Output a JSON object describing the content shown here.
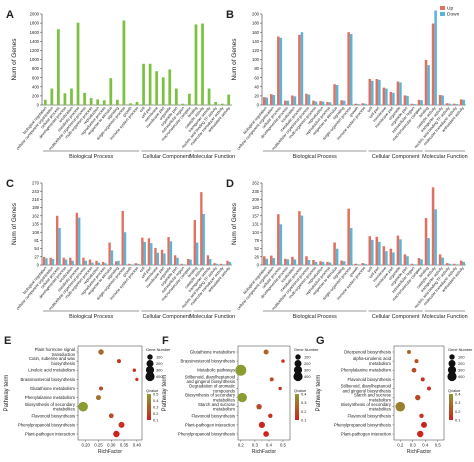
{
  "go_axis": {
    "ylabel": "Num of Genes",
    "terms": [
      "biological regulation",
      "cellular component organization",
      "cellular process",
      "developmental process",
      "localization",
      "metabolic process",
      "multicellular organismal process",
      "multi-organism process",
      "reproduction",
      "reproductive process",
      "response to stimulus",
      "signaling",
      "single-organism process",
      "growth",
      "immune system process",
      "cell",
      "cell part",
      "membrane",
      "membrane part",
      "organelle",
      "organelle part",
      "extracellular region",
      "macromolecular complex",
      "binding",
      "catalytic activity",
      "transporter activity",
      "nucleic acid binding TF activity",
      "molecular transducer activity",
      "antioxidant activity"
    ],
    "groups": [
      "Biological Process",
      "Cellular Component",
      "Molecular Function"
    ]
  },
  "legend_updown": {
    "up": "Up",
    "down": "Down"
  },
  "kegg_common": {
    "ylabel": "Pathway term",
    "xlabel": "RichFactor",
    "size_title": "Gene Number",
    "color_title": "Qvalue"
  },
  "chart_data": [
    {
      "panel": "A",
      "type": "bar",
      "ylim": [
        0,
        2100
      ],
      "yticks": [
        "0",
        "200",
        "400",
        "600",
        "800",
        "1000",
        "1200",
        "1400",
        "1600",
        "1800",
        "2000"
      ],
      "series": [
        {
          "values": [
            120,
            380,
            1750,
            270,
            380,
            1900,
            280,
            160,
            130,
            110,
            620,
            120,
            1950,
            40,
            70,
            950,
            950,
            780,
            640,
            820,
            380,
            30,
            260,
            1860,
            1880,
            380,
            70,
            30,
            240
          ]
        }
      ],
      "colors": {
        "bar": "#7dc142"
      }
    },
    {
      "panel": "B",
      "type": "bar",
      "ylim": [
        0,
        210
      ],
      "yticks": [
        "0",
        "20",
        "40",
        "60",
        "80",
        "100",
        "120",
        "140",
        "160",
        "180",
        "200"
      ],
      "series": [
        {
          "values": [
            18,
            25,
            158,
            10,
            22,
            162,
            26,
            10,
            9,
            7,
            48,
            11,
            168,
            3,
            4,
            60,
            60,
            40,
            30,
            54,
            22,
            3,
            12,
            104,
            188,
            23,
            4,
            3,
            13
          ]
        },
        {
          "values": [
            17,
            23,
            155,
            10,
            20,
            168,
            24,
            8,
            8,
            6,
            46,
            10,
            164,
            2,
            3,
            56,
            58,
            38,
            28,
            52,
            21,
            2,
            11,
            92,
            218,
            22,
            3,
            2,
            12
          ]
        }
      ],
      "colors": {
        "up": "#e07060",
        "down": "#5ab5d6"
      }
    },
    {
      "panel": "C",
      "type": "bar",
      "ylim": [
        0,
        270
      ],
      "yticks": [
        "0",
        "27",
        "54",
        "81",
        "108",
        "135",
        "162",
        "189",
        "216",
        "243",
        "270"
      ],
      "series": [
        {
          "values": [
            26,
            24,
            162,
            24,
            24,
            172,
            24,
            18,
            14,
            10,
            74,
            12,
            178,
            4,
            6,
            90,
            88,
            56,
            50,
            92,
            32,
            4,
            20,
            148,
            240,
            32,
            6,
            4,
            14
          ]
        },
        {
          "values": [
            22,
            20,
            122,
            18,
            14,
            156,
            14,
            8,
            8,
            6,
            48,
            14,
            108,
            2,
            4,
            76,
            72,
            40,
            38,
            78,
            24,
            2,
            18,
            74,
            168,
            20,
            4,
            2,
            10
          ]
        }
      ],
      "colors": {
        "up": "#e07060",
        "down": "#5ab5d6"
      }
    },
    {
      "panel": "D",
      "type": "bar",
      "ylim": [
        0,
        262
      ],
      "yticks": [
        "0",
        "26",
        "52",
        "78",
        "104",
        "131",
        "157",
        "183",
        "209",
        "235",
        "262"
      ],
      "series": [
        {
          "values": [
            28,
            30,
            162,
            20,
            26,
            172,
            28,
            16,
            12,
            10,
            72,
            14,
            180,
            4,
            6,
            92,
            90,
            60,
            52,
            94,
            34,
            4,
            22,
            150,
            248,
            34,
            6,
            4,
            14
          ]
        },
        {
          "values": [
            20,
            22,
            130,
            18,
            18,
            158,
            16,
            10,
            10,
            8,
            52,
            12,
            118,
            2,
            4,
            80,
            74,
            44,
            40,
            82,
            28,
            2,
            18,
            86,
            178,
            24,
            4,
            2,
            10
          ]
        }
      ],
      "colors": {
        "up": "#e07060",
        "down": "#5ab5d6"
      }
    },
    {
      "panel": "E",
      "type": "scatter",
      "xlabel": "RichFactor",
      "ylabel": "Pathway term",
      "xlim": [
        0.17,
        0.42
      ],
      "xticks": [
        "0.20",
        "0.25",
        "0.30",
        "0.35",
        "0.40"
      ],
      "categories": [
        "Plant hormone signal transduction",
        "Cutin, suberine and wax biosynthesis",
        "Linoleic acid metabolism",
        "Brassinosteroid biosynthesis",
        "Glutathione metabolism",
        "Phenylalanine metabolism",
        "Biosynthesis of secondary metabolites",
        "Flavonoid biosynthesis",
        "Phenylpropanoid biosynthesis",
        "Plant-pathogen interaction"
      ],
      "points": [
        {
          "x": 0.26,
          "genes": 60,
          "q": 0.3
        },
        {
          "x": 0.33,
          "genes": 20,
          "q": 0.1
        },
        {
          "x": 0.39,
          "genes": 10,
          "q": 0.1
        },
        {
          "x": 0.4,
          "genes": 8,
          "q": 0.1
        },
        {
          "x": 0.26,
          "genes": 20,
          "q": 0.2
        },
        {
          "x": 0.25,
          "genes": 50,
          "q": 0.35
        },
        {
          "x": 0.19,
          "genes": 300,
          "q": 0.5
        },
        {
          "x": 0.3,
          "genes": 40,
          "q": 0.2
        },
        {
          "x": 0.34,
          "genes": 80,
          "q": 0.1
        },
        {
          "x": 0.32,
          "genes": 100,
          "q": 0.05
        }
      ],
      "size_legend": [
        "100",
        "200",
        "300",
        "400"
      ],
      "color_legend": [
        "0.5",
        "0.4",
        "0.3",
        "0.2",
        "0.1"
      ]
    },
    {
      "panel": "F",
      "type": "scatter",
      "xlabel": "RichFactor",
      "ylabel": "Pathway term",
      "xlim": [
        0.18,
        0.55
      ],
      "xticks": [
        "0.2",
        "0.3",
        "0.4",
        "0.5"
      ],
      "categories": [
        "Glutathione metabolism",
        "Brassinosteroid biosynthesis",
        "Metabolic pathways",
        "Stilbenoid, diarylheptanoid and gingerol biosynthesis",
        "Degradation of aromatic compounds",
        "Biosynthesis of secondary metabolites",
        "Starch and sucrose metabolism",
        "Flavonoid biosynthesis",
        "Plant-pathogen interaction",
        "Phenylpropanoid biosynthesis"
      ],
      "points": [
        {
          "x": 0.38,
          "genes": 50,
          "q": 0.3
        },
        {
          "x": 0.5,
          "genes": 10,
          "q": 0.1
        },
        {
          "x": 0.2,
          "genes": 420,
          "q": 0.5
        },
        {
          "x": 0.42,
          "genes": 20,
          "q": 0.2
        },
        {
          "x": 0.48,
          "genes": 10,
          "q": 0.1
        },
        {
          "x": 0.21,
          "genes": 280,
          "q": 0.5
        },
        {
          "x": 0.33,
          "genes": 60,
          "q": 0.2
        },
        {
          "x": 0.41,
          "genes": 30,
          "q": 0.1
        },
        {
          "x": 0.35,
          "genes": 90,
          "q": 0.05
        },
        {
          "x": 0.38,
          "genes": 70,
          "q": 0.05
        }
      ],
      "size_legend": [
        "100",
        "200",
        "300",
        "400"
      ],
      "color_legend": [
        "0.4",
        "0.3",
        "0.2",
        "0.1"
      ]
    },
    {
      "panel": "G",
      "type": "scatter",
      "xlabel": "RichFactor",
      "ylabel": "Pathway term",
      "xlim": [
        0.15,
        0.55
      ],
      "xticks": [
        "0.2",
        "0.3",
        "0.4",
        "0.5"
      ],
      "categories": [
        "Diterpenoid biosynthesis",
        "alpha-Linolenic acid metabolism",
        "Phenylalanine metabolism",
        "Flavonoid biosynthesis",
        "Stilbenoid, diarylheptanoid and gingerol biosynthesis",
        "Starch and sucrose metabolism",
        "Biosynthesis of secondary metabolites",
        "Flavonoid biosynthesis",
        "Phenylpropanoid biosynthesis",
        "Plant-pathogen interaction"
      ],
      "points": [
        {
          "x": 0.27,
          "genes": 20,
          "q": 0.3
        },
        {
          "x": 0.33,
          "genes": 20,
          "q": 0.2
        },
        {
          "x": 0.31,
          "genes": 40,
          "q": 0.2
        },
        {
          "x": 0.38,
          "genes": 20,
          "q": 0.1
        },
        {
          "x": 0.43,
          "genes": 20,
          "q": 0.1
        },
        {
          "x": 0.34,
          "genes": 60,
          "q": 0.2
        },
        {
          "x": 0.2,
          "genes": 300,
          "q": 0.4
        },
        {
          "x": 0.37,
          "genes": 30,
          "q": 0.1
        },
        {
          "x": 0.39,
          "genes": 80,
          "q": 0.05
        },
        {
          "x": 0.36,
          "genes": 100,
          "q": 0.05
        }
      ],
      "size_legend": [
        "100",
        "200",
        "300",
        "400"
      ],
      "color_legend": [
        "0.4",
        "0.3",
        "0.2",
        "0.1"
      ]
    }
  ]
}
